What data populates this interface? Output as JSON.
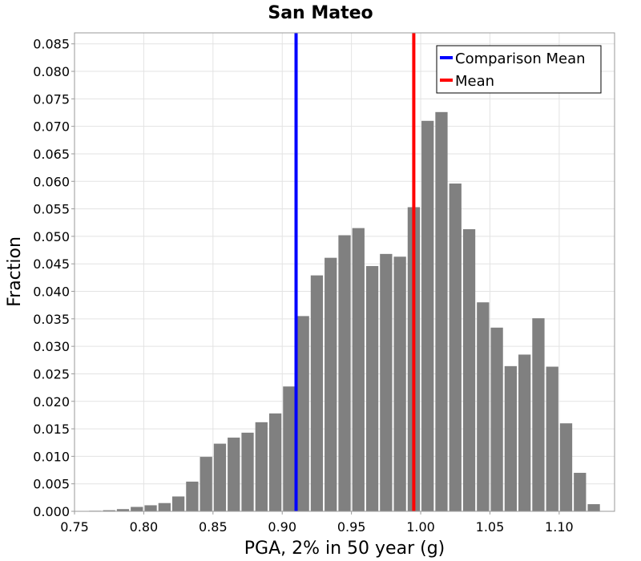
{
  "chart_data": {
    "type": "bar",
    "title": "San Mateo",
    "xlabel": "PGA, 2% in 50 year (g)",
    "ylabel": "Fraction",
    "xlim": [
      0.75,
      1.14
    ],
    "ylim": [
      0,
      0.087
    ],
    "bin_width": 0.01,
    "bins": [
      {
        "x": 0.765,
        "y": 0.0001
      },
      {
        "x": 0.775,
        "y": 0.0002
      },
      {
        "x": 0.785,
        "y": 0.0004
      },
      {
        "x": 0.795,
        "y": 0.0008
      },
      {
        "x": 0.805,
        "y": 0.0011
      },
      {
        "x": 0.815,
        "y": 0.0015
      },
      {
        "x": 0.825,
        "y": 0.0027
      },
      {
        "x": 0.835,
        "y": 0.0054
      },
      {
        "x": 0.845,
        "y": 0.0099
      },
      {
        "x": 0.855,
        "y": 0.0123
      },
      {
        "x": 0.865,
        "y": 0.0134
      },
      {
        "x": 0.875,
        "y": 0.0143
      },
      {
        "x": 0.885,
        "y": 0.0162
      },
      {
        "x": 0.895,
        "y": 0.0178
      },
      {
        "x": 0.905,
        "y": 0.0227
      },
      {
        "x": 0.915,
        "y": 0.0355
      },
      {
        "x": 0.925,
        "y": 0.0429
      },
      {
        "x": 0.935,
        "y": 0.0461
      },
      {
        "x": 0.945,
        "y": 0.0502
      },
      {
        "x": 0.955,
        "y": 0.0515
      },
      {
        "x": 0.965,
        "y": 0.0446
      },
      {
        "x": 0.975,
        "y": 0.0468
      },
      {
        "x": 0.985,
        "y": 0.0463
      },
      {
        "x": 0.995,
        "y": 0.0553
      },
      {
        "x": 1.005,
        "y": 0.071
      },
      {
        "x": 1.015,
        "y": 0.0726
      },
      {
        "x": 1.025,
        "y": 0.0596
      },
      {
        "x": 1.035,
        "y": 0.0513
      },
      {
        "x": 1.045,
        "y": 0.038
      },
      {
        "x": 1.055,
        "y": 0.0334
      },
      {
        "x": 1.065,
        "y": 0.0264
      },
      {
        "x": 1.075,
        "y": 0.0285
      },
      {
        "x": 1.085,
        "y": 0.0351
      },
      {
        "x": 1.095,
        "y": 0.0263
      },
      {
        "x": 1.105,
        "y": 0.016
      },
      {
        "x": 1.115,
        "y": 0.007
      },
      {
        "x": 1.125,
        "y": 0.0013
      }
    ],
    "vlines": [
      {
        "name": "Comparison Mean",
        "x": 0.91,
        "color": "#0000ff"
      },
      {
        "name": "Mean",
        "x": 0.995,
        "color": "#ff0000"
      }
    ],
    "xticks": [
      "0.75",
      "0.80",
      "0.85",
      "0.90",
      "0.95",
      "1.00",
      "1.05",
      "1.10"
    ],
    "yticks": [
      "0.000",
      "0.005",
      "0.010",
      "0.015",
      "0.020",
      "0.025",
      "0.030",
      "0.035",
      "0.040",
      "0.045",
      "0.050",
      "0.055",
      "0.060",
      "0.065",
      "0.070",
      "0.075",
      "0.080",
      "0.085"
    ],
    "bar_color": "#808080",
    "grid": true,
    "legend_position": "top-right"
  }
}
